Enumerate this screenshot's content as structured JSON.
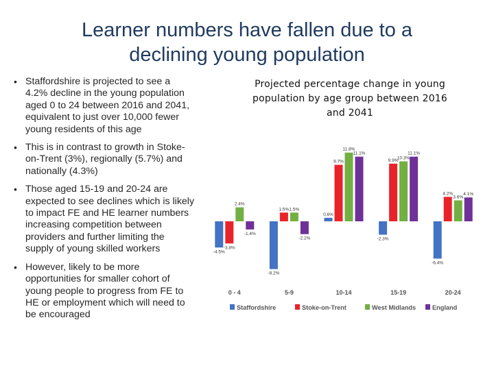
{
  "slide": {
    "title_line1": "Learner numbers have fallen due to a",
    "title_line2": "declining young population",
    "bullets": [
      "Staffordshire is projected to see a 4.2% decline in the young population aged 0 to 24 between 2016 and 2041, equivalent to just over 10,000 fewer young residents of this age",
      "This is in contrast to growth in Stoke-on-Trent (3%), regionally (5.7%) and nationally (4.3%)",
      "Those aged 15-19 and 20-24 are expected to see declines which is likely to impact FE and HE learner numbers increasing competition between providers and further limiting the supply of young skilled workers",
      "However, likely to be more opportunities for smaller cohort of young people to progress from FE to HE or employment which will need to be encouraged"
    ],
    "bullet_icon": "bullet-dot"
  },
  "chart_title": {
    "line1": "Projected percentage change in young",
    "line2": "population by age group between 2016",
    "line3": "and 2041"
  },
  "chart_data": {
    "type": "bar",
    "title": "Projected percentage change in young population by age group between 2016 and 2041",
    "categories": [
      "0 - 4",
      "5-9",
      "10-14",
      "15-19",
      "20-24"
    ],
    "series": [
      {
        "name": "Staffordshire",
        "color": "#4472c4",
        "values": [
          -4.5,
          -8.2,
          0.6,
          -2.3,
          -6.4
        ],
        "labels": [
          "-4.5%",
          "-8.2%",
          "0.6%",
          "-2.3%",
          "-6.4%"
        ]
      },
      {
        "name": "Stoke-on-Trent",
        "color": "#e8242a",
        "values": [
          -3.8,
          1.5,
          9.7,
          9.9,
          4.2
        ],
        "labels": [
          "-3.8%",
          "1.5%",
          "9.7%",
          "9.9%",
          "4.2%"
        ]
      },
      {
        "name": "West Midlands",
        "color": "#72b043",
        "values": [
          2.4,
          1.5,
          11.8,
          10.3,
          3.6
        ],
        "labels": [
          "2.4%",
          "1.5%",
          "11.8%",
          "10.3%",
          "3.6%"
        ]
      },
      {
        "name": "England",
        "color": "#6f3198",
        "values": [
          -1.4,
          -2.2,
          11.1,
          11.1,
          4.1
        ],
        "labels": [
          "-1.4%",
          "-2.2%",
          "11.1%",
          "11.1%",
          "4.1%"
        ]
      }
    ],
    "ylim": [
      -9,
      12.5
    ],
    "grid": false,
    "legend_position": "bottom"
  }
}
